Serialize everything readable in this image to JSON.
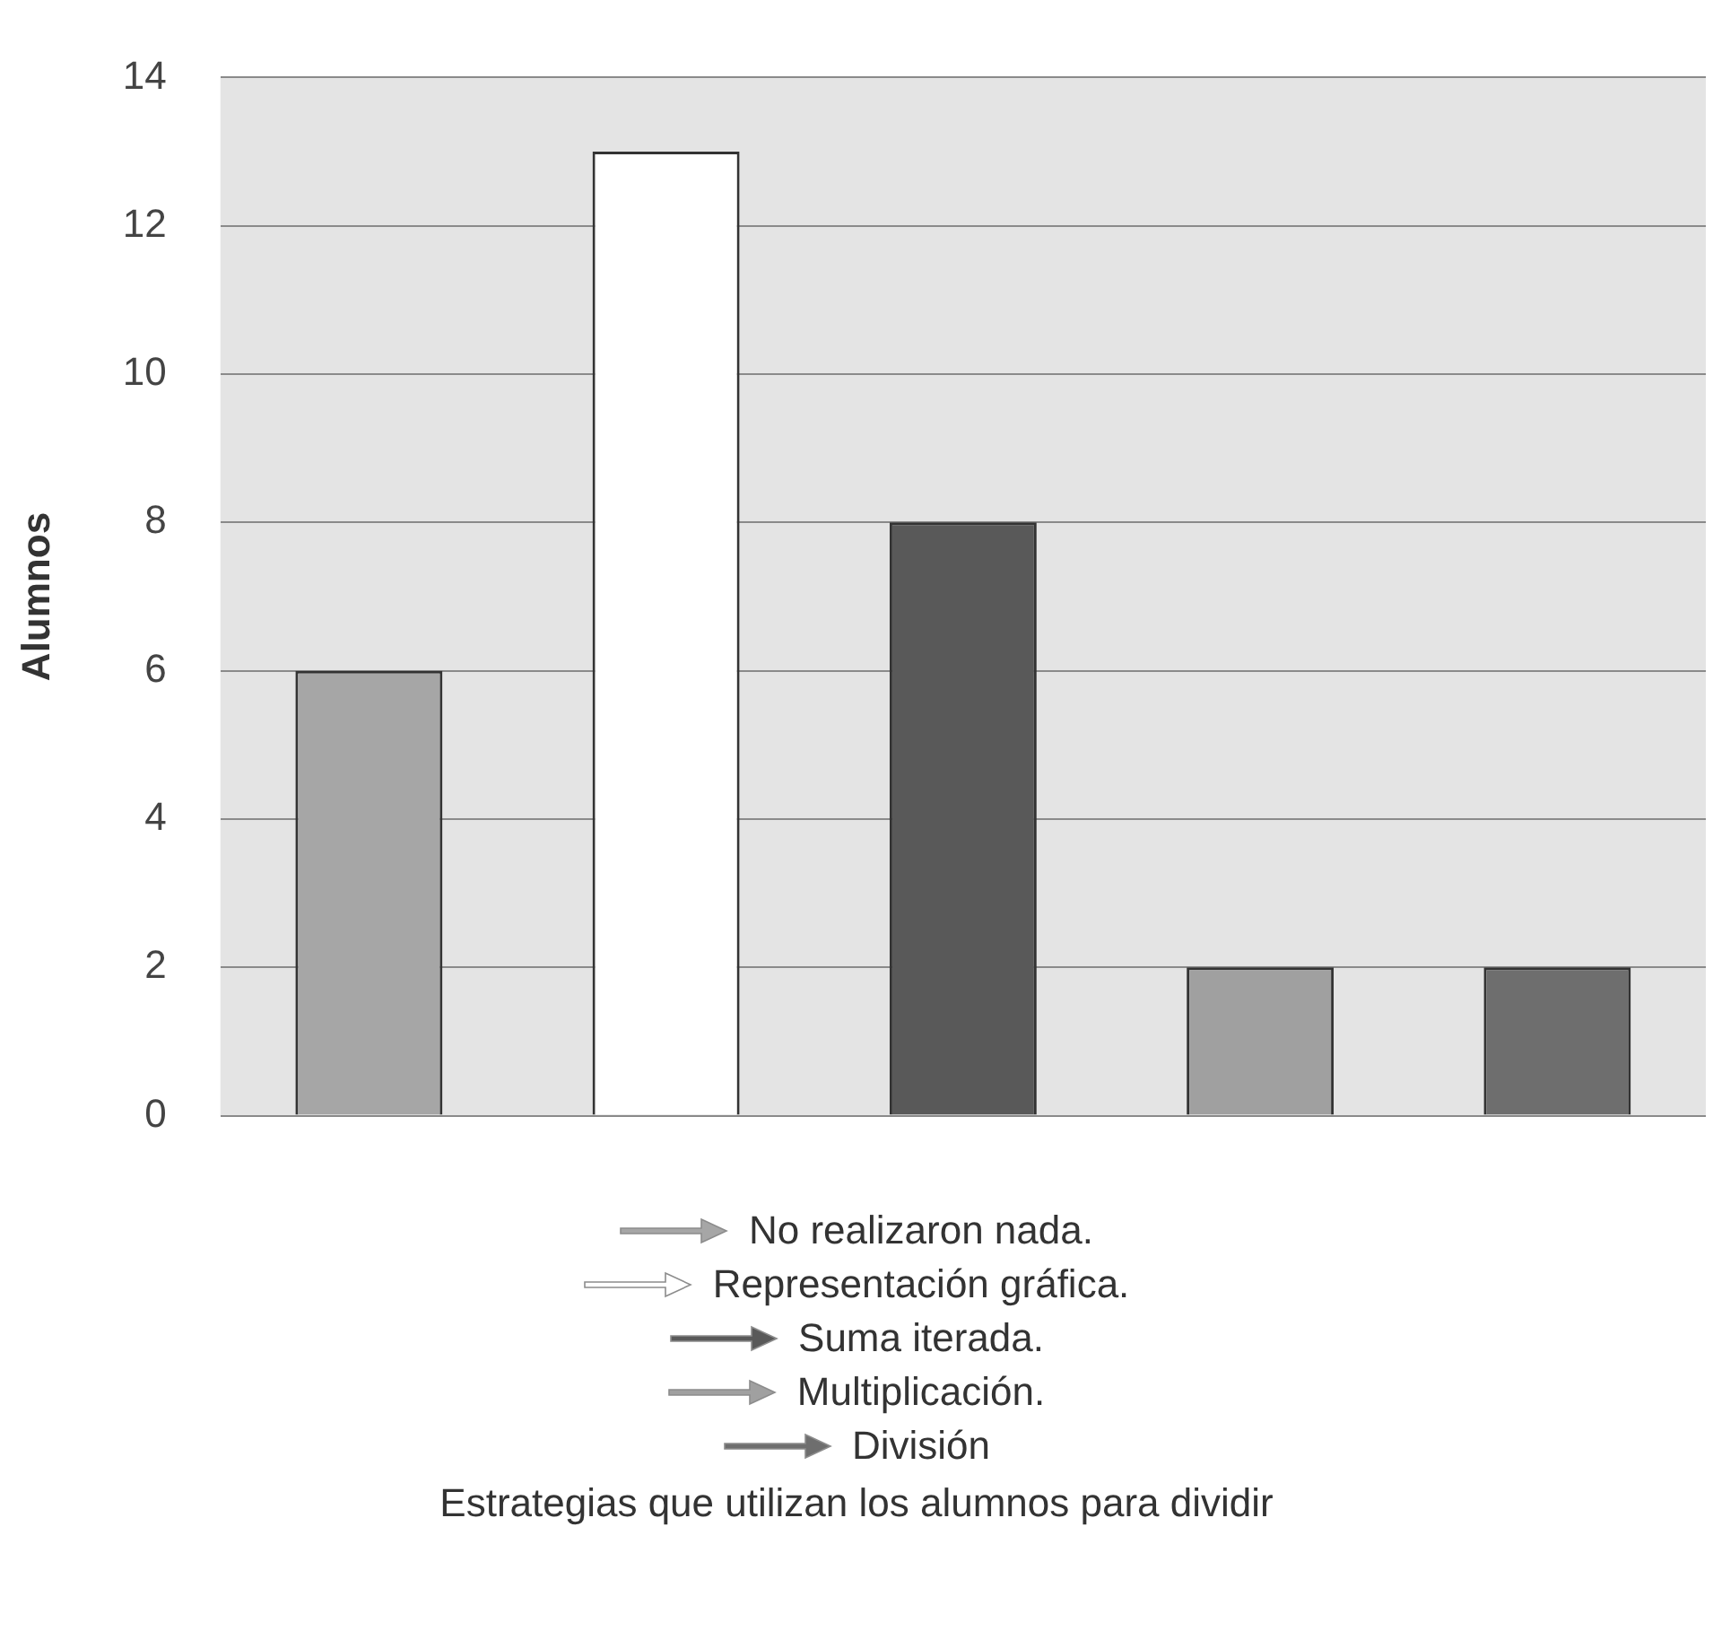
{
  "chart_data": {
    "type": "bar",
    "annotations": [
      "Estrategias que utilizan los alumnos para dividir"
    ],
    "ylabel": "Alumnos",
    "categories": [
      null,
      null,
      null,
      null,
      null
    ],
    "series": [
      {
        "name": "No realizaron nada.",
        "color": "#a6a6a6",
        "values": [
          6,
          null,
          null,
          null,
          null
        ]
      },
      {
        "name": "Representación gráfica.",
        "color": "#ffffff",
        "values": [
          null,
          13,
          null,
          null,
          null
        ]
      },
      {
        "name": "Suma iterada.",
        "color": "#595959",
        "values": [
          null,
          null,
          8,
          null,
          null
        ]
      },
      {
        "name": "Multiplicación.",
        "color": "#a0a0a0",
        "values": [
          null,
          null,
          null,
          2,
          null
        ]
      },
      {
        "name": "División",
        "color": "#6e6e6e",
        "values": [
          null,
          null,
          null,
          null,
          2
        ]
      }
    ],
    "ylim": [
      0,
      14
    ],
    "yticks": [
      0,
      2,
      4,
      6,
      8,
      10,
      12,
      14
    ],
    "grid": "y",
    "legend": "bottom"
  }
}
